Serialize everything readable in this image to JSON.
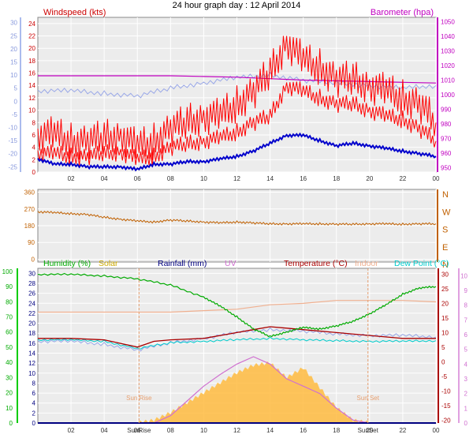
{
  "chart_data": [
    {
      "type": "line",
      "title": "24 hour graph day : 12 April 2014",
      "x_ticks": [
        "02",
        "04",
        "06",
        "08",
        "10",
        "12",
        "14",
        "16",
        "18",
        "20",
        "22",
        "00"
      ],
      "left_axis_label": "Windspeed (kts)",
      "right_axis_label": "Barometer (hpa)",
      "left_ticks": [
        "0",
        "2",
        "4",
        "6",
        "8",
        "10",
        "12",
        "14",
        "16",
        "18",
        "20",
        "22",
        "24"
      ],
      "outer_left_ticks": [
        "-25",
        "-20",
        "-15",
        "-10",
        "-5",
        "0",
        "5",
        "10",
        "15",
        "20",
        "25",
        "30"
      ],
      "right_ticks": [
        "950",
        "960",
        "970",
        "980",
        "990",
        "1000",
        "1010",
        "1020",
        "1030",
        "1040",
        "1050"
      ],
      "series": [
        {
          "name": "Windspeed (kts)",
          "color": "#ff0000",
          "unit": "kts",
          "x": [
            0,
            1,
            2,
            3,
            4,
            5,
            6,
            7,
            8,
            9,
            10,
            11,
            12,
            13,
            14,
            15,
            16,
            17,
            18,
            19,
            20,
            21,
            22,
            23,
            24
          ],
          "values": [
            3,
            3,
            2.5,
            2.5,
            3,
            3.2,
            2,
            2.5,
            4,
            4.5,
            5,
            5.5,
            6.5,
            8,
            9,
            14,
            13,
            12,
            11,
            11,
            10,
            9,
            8.5,
            7,
            5
          ]
        },
        {
          "name": "Wind gust (kts)",
          "color": "#ff0000",
          "unit": "kts",
          "x": [
            0,
            1,
            2,
            3,
            4,
            5,
            6,
            7,
            8,
            9,
            10,
            11,
            12,
            13,
            14,
            15,
            16,
            17,
            18,
            19,
            20,
            21,
            22,
            23,
            24
          ],
          "values": [
            6,
            6,
            5,
            5,
            5.5,
            6,
            4,
            5,
            7,
            8,
            9,
            9,
            11,
            13,
            16,
            21,
            18,
            17,
            15,
            15,
            14,
            13,
            12,
            11,
            8
          ]
        },
        {
          "name": "Barometer (hpa)",
          "color": "#c000c0",
          "unit": "hpa",
          "x": [
            0,
            2,
            4,
            6,
            8,
            10,
            12,
            14,
            16,
            18,
            20,
            22,
            24
          ],
          "values": [
            1013,
            1013,
            1013,
            1013,
            1013,
            1012.5,
            1012,
            1011,
            1010,
            1009.5,
            1009,
            1008.5,
            1008
          ]
        },
        {
          "name": "Outdoor temperature (blue, outer left scale)",
          "color": "#0000cc",
          "unit": "°C",
          "x": [
            0,
            1,
            2,
            3,
            4,
            5,
            6,
            7,
            8,
            9,
            10,
            11,
            12,
            13,
            14,
            15,
            16,
            17,
            18,
            19,
            20,
            21,
            22,
            23,
            24
          ],
          "values": [
            -22,
            -24,
            -24,
            -25,
            -25,
            -25,
            -26,
            -24,
            -24,
            -23,
            -23,
            -22,
            -21,
            -19,
            -16,
            -13,
            -13,
            -15,
            -17,
            -16,
            -17,
            -18,
            -19,
            -20,
            -21
          ]
        },
        {
          "name": "Apparent temp (light blue, outer left scale)",
          "color": "#9aa8e8",
          "unit": "°C",
          "x": [
            0,
            2,
            4,
            6,
            8,
            10,
            12,
            14,
            16,
            18,
            20,
            22,
            24
          ],
          "values": [
            4,
            4,
            3,
            2,
            5,
            7,
            9,
            10,
            8,
            7,
            6,
            5,
            6
          ]
        }
      ]
    },
    {
      "type": "scatter",
      "title": "Wind direction",
      "left_ticks": [
        "0",
        "90",
        "180",
        "270",
        "360"
      ],
      "right_labels": [
        "N",
        "W",
        "S",
        "E",
        "N"
      ],
      "series": [
        {
          "name": "Wind direction (deg)",
          "color": "#c06000",
          "x": [
            0,
            1,
            2,
            3,
            4,
            5,
            6,
            7,
            8,
            9,
            10,
            11,
            12,
            13,
            14,
            15,
            16,
            17,
            18,
            19,
            20,
            21,
            22,
            23,
            24
          ],
          "values": [
            255,
            250,
            245,
            240,
            225,
            215,
            205,
            200,
            210,
            205,
            200,
            195,
            200,
            195,
            190,
            190,
            190,
            190,
            188,
            188,
            190,
            190,
            188,
            190,
            190
          ]
        }
      ]
    },
    {
      "type": "line",
      "title": "",
      "legend": [
        "Humidity (%)",
        "Solar",
        "Rainfall (mm)",
        "UV",
        "Temperature (°C)",
        "Indoor",
        "Dew Point (°C)"
      ],
      "legend_colors": [
        "#00aa00",
        "#ccaa00",
        "#000080",
        "#d070d0",
        "#aa0000",
        "#f0b090",
        "#00cccc"
      ],
      "humidity_ticks": [
        "0",
        "10",
        "20",
        "30",
        "40",
        "50",
        "60",
        "70",
        "80",
        "90",
        "100"
      ],
      "rain_ticks": [
        "0",
        "2",
        "4",
        "6",
        "8",
        "10",
        "12",
        "14",
        "16",
        "18",
        "20",
        "22",
        "24",
        "26",
        "28",
        "30"
      ],
      "temp_ticks": [
        "-20",
        "-15",
        "-10",
        "-5",
        "0",
        "5",
        "10",
        "15",
        "20",
        "25",
        "30"
      ],
      "uv_ticks": [
        "0",
        "1",
        "2",
        "3",
        "4",
        "5",
        "6",
        "7",
        "8",
        "9",
        "10"
      ],
      "x_ticks": [
        "02",
        "04",
        "06",
        "08",
        "10",
        "12",
        "14",
        "16",
        "18",
        "20",
        "22",
        "00"
      ],
      "annotations": [
        "Sun Rise",
        "Sun Set"
      ],
      "sunrise_tick": "SunRise",
      "sunset_tick": "SunSet",
      "series": [
        {
          "name": "Humidity (%)",
          "color": "#00aa00",
          "x": [
            0,
            2,
            4,
            6,
            8,
            10,
            11,
            12,
            13,
            14,
            15,
            16,
            17,
            18,
            19,
            20,
            21,
            22,
            23,
            24
          ],
          "values": [
            98,
            98,
            97,
            95,
            91,
            83,
            77,
            70,
            62,
            57,
            60,
            63,
            62,
            64,
            67,
            72,
            78,
            85,
            89,
            90
          ]
        },
        {
          "name": "Temperature (°C)",
          "color": "#aa0000",
          "x": [
            0,
            2,
            4,
            6,
            7,
            8,
            10,
            12,
            13,
            14,
            15,
            16,
            18,
            20,
            22,
            24
          ],
          "values": [
            8,
            8,
            7.5,
            5,
            7,
            7.5,
            8,
            10,
            11,
            12,
            11.5,
            11,
            10,
            9,
            8,
            8
          ]
        },
        {
          "name": "Indoor",
          "color": "#f0b090",
          "x": [
            0,
            2,
            4,
            6,
            8,
            10,
            12,
            14,
            16,
            18,
            20,
            22,
            24
          ],
          "values": [
            17,
            17,
            17,
            17,
            17,
            17.5,
            18,
            19.5,
            20,
            21,
            21,
            21,
            20.5
          ]
        },
        {
          "name": "Dew Point (°C)",
          "color": "#00cccc",
          "x": [
            0,
            2,
            4,
            6,
            8,
            10,
            12,
            14,
            16,
            18,
            20,
            22,
            24
          ],
          "values": [
            7.5,
            7.5,
            7,
            4.5,
            6.5,
            7,
            7.5,
            8,
            7.5,
            7.2,
            7,
            7,
            7.2
          ]
        },
        {
          "name": "Apparent temp (light blue)",
          "color": "#9aa8e8",
          "x": [
            0,
            2,
            4,
            6,
            8,
            10,
            12,
            14,
            16,
            18,
            20,
            22,
            24
          ],
          "values": [
            7,
            7,
            6,
            4,
            6.5,
            8,
            10,
            11,
            10.5,
            9.5,
            9,
            9,
            8.5
          ]
        },
        {
          "name": "Solar",
          "color": "#ffbb40",
          "x": [
            6,
            7,
            8,
            9,
            10,
            11,
            12,
            13,
            14,
            15,
            16,
            17,
            18,
            19,
            20
          ],
          "values": [
            0,
            0.5,
            2,
            4,
            6,
            8,
            10,
            11.5,
            12,
            9,
            11,
            7,
            3,
            0.5,
            0
          ]
        },
        {
          "name": "UV",
          "color": "#d070d0",
          "x": [
            6,
            7,
            8,
            9,
            10,
            11,
            12,
            13,
            14,
            15,
            16,
            17,
            18,
            19,
            20
          ],
          "values": [
            0,
            0,
            0.5,
            1.5,
            2.5,
            3.3,
            4,
            4.5,
            4,
            3,
            2.5,
            2,
            1,
            0.2,
            0
          ]
        },
        {
          "name": "Rainfall (mm)",
          "color": "#000080",
          "x": [
            0,
            24
          ],
          "values": [
            0,
            0
          ]
        }
      ]
    }
  ]
}
